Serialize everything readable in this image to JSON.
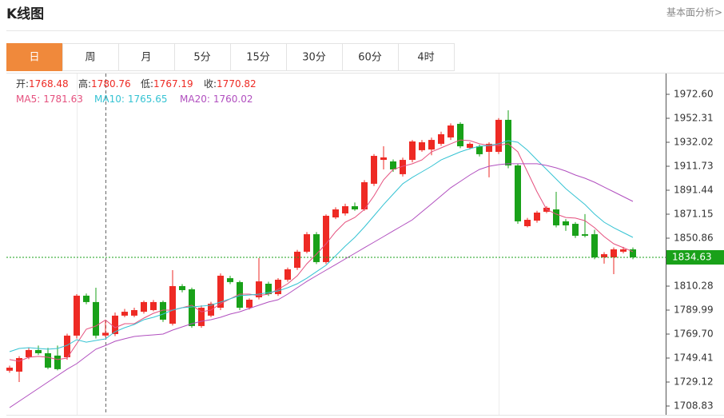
{
  "header": {
    "title": "K线图",
    "link": "基本面分析>"
  },
  "tabs": [
    {
      "label": "日",
      "active": true
    },
    {
      "label": "周"
    },
    {
      "label": "月"
    },
    {
      "label": "5分"
    },
    {
      "label": "15分"
    },
    {
      "label": "30分"
    },
    {
      "label": "60分"
    },
    {
      "label": "4时"
    }
  ],
  "chart_data": {
    "type": "candlestick",
    "info": {
      "labels": [
        "开:",
        "高:",
        "低:",
        "收:"
      ],
      "values": [
        1768.48,
        1780.76,
        1767.19,
        1770.82
      ],
      "ma_values": [
        1781.63,
        1765.65,
        1760.02
      ]
    },
    "up_color": "#ee2a24",
    "down_color": "#19a119",
    "open": [
      1738.7,
      1737.9,
      1750.1,
      1756.2,
      1753.5,
      1751.5,
      1750.1,
      1768.4,
      1802.2,
      1796.8,
      1768.48,
      1769.7,
      1785.3,
      1785.3,
      1788.6,
      1790.0,
      1796.8,
      1778.5,
      1810.3,
      1807.6,
      1776.5,
      1785.3,
      1792.0,
      1817.0,
      1813.7,
      1792.0,
      1800.8,
      1812.3,
      1803.5,
      1815.7,
      1825.8,
      1839.4,
      1854.2,
      1830.6,
      1868.4,
      1871.8,
      1877.9,
      1875.2,
      1896.9,
      1917.1,
      1915.8,
      1905.0,
      1917.1,
      1925.3,
      1925.9,
      1930.7,
      1936.1,
      1947.6,
      1927.3,
      1928.6,
      1923.9,
      1923.9,
      1951.0,
      1912.4,
      1861.0,
      1865.7,
      1873.2,
      1875.2,
      1865.1,
      1863.0,
      1854.2,
      1854.2,
      1834.6,
      1834.6,
      1839.4,
      1841.4
    ],
    "high": [
      1743,
      1751,
      1758,
      1760,
      1758,
      1760,
      1770,
      1803.5,
      1804,
      1808.9,
      1780.76,
      1788,
      1791,
      1792,
      1798,
      1798.5,
      1798,
      1823.8,
      1812,
      1809,
      1794,
      1797,
      1821,
      1819,
      1815,
      1800,
      1834.0,
      1814,
      1817,
      1826,
      1841,
      1856,
      1856,
      1871,
      1877,
      1880,
      1881,
      1900,
      1922,
      1928.6,
      1917.5,
      1919,
      1934,
      1934,
      1936,
      1941,
      1948,
      1949,
      1932,
      1930,
      1932,
      1952.5,
      1959.1,
      1914,
      1868,
      1874,
      1878,
      1890.1,
      1867,
      1864.5,
      1871.2,
      1858,
      1839,
      1843,
      1843.5,
      1843
    ],
    "low": [
      1737,
      1729.1,
      1748.5,
      1752,
      1740,
      1739,
      1748,
      1766,
      1795,
      1766,
      1767.19,
      1768,
      1784,
      1784,
      1787,
      1789,
      1780,
      1777,
      1805,
      1775,
      1775,
      1784,
      1790,
      1812,
      1790,
      1790.5,
      1799,
      1802,
      1802,
      1814,
      1824,
      1838,
      1829,
      1829,
      1867,
      1870,
      1874,
      1874,
      1895,
      1909.0,
      1907,
      1903,
      1915,
      1924,
      1921,
      1929,
      1934,
      1927,
      1926,
      1920,
      1902.3,
      1922,
      1910,
      1863,
      1860,
      1864,
      1872,
      1860,
      1857,
      1851,
      1851.5,
      1833,
      1829.3,
      1820.4,
      1838,
      1833
    ],
    "close": [
      1741.3,
      1749.4,
      1756.2,
      1753.5,
      1741.3,
      1740.0,
      1768.4,
      1802.2,
      1796.8,
      1768.4,
      1770.82,
      1785.3,
      1788.6,
      1790.0,
      1796.8,
      1796.8,
      1781.9,
      1810.3,
      1806.9,
      1776.5,
      1792.0,
      1795.4,
      1819.1,
      1813.7,
      1792.0,
      1798.8,
      1814.3,
      1803.5,
      1815.7,
      1824.5,
      1839.4,
      1854.2,
      1830.6,
      1869.8,
      1875.2,
      1877.9,
      1875.2,
      1898.2,
      1920.5,
      1919.2,
      1909.0,
      1917.1,
      1932.7,
      1932.0,
      1934.0,
      1938.8,
      1946.2,
      1928.6,
      1930.7,
      1921.9,
      1930.7,
      1951.0,
      1912.4,
      1865.1,
      1866.4,
      1872.5,
      1876.6,
      1861.7,
      1861.7,
      1852.9,
      1852.9,
      1834.6,
      1837.3,
      1841.4,
      1841.4,
      1834.63
    ],
    "series": [
      {
        "name": "MA5:",
        "color": "#e5507e",
        "values": [
          1748.1,
          1746.7,
          1750.1,
          1750.8,
          1750.1,
          1748.1,
          1749.4,
          1761.6,
          1773.8,
          1776.5,
          1781.63,
          1775.1,
          1778.5,
          1778.5,
          1783.2,
          1787.3,
          1790.0,
          1790.0,
          1792.0,
          1794.1,
          1788.6,
          1790.0,
          1795.4,
          1799.5,
          1803.5,
          1803.5,
          1802.2,
          1803.5,
          1807.6,
          1812.3,
          1819.1,
          1829.2,
          1837.3,
          1846.1,
          1856.3,
          1864.4,
          1868.4,
          1875.2,
          1886.7,
          1900.2,
          1909.0,
          1911.7,
          1913.8,
          1917.1,
          1923.9,
          1927.3,
          1930.7,
          1934.0,
          1933.4,
          1930.7,
          1929.3,
          1929.3,
          1930.7,
          1923.9,
          1907.0,
          1890.1,
          1875.2,
          1871.2,
          1868.4,
          1867.8,
          1865.7,
          1859.7,
          1852.2,
          1846.1,
          1842.8,
          1839.4
        ]
      },
      {
        "name": "MA10:",
        "color": "#35c3d3",
        "values": [
          1754.8,
          1757.5,
          1758.2,
          1757.5,
          1756.9,
          1757.5,
          1760.2,
          1765.0,
          1762.9,
          1764.3,
          1765.65,
          1771.7,
          1775.1,
          1777.8,
          1781.9,
          1783.9,
          1786.6,
          1790.0,
          1792.0,
          1792.7,
          1793.4,
          1794.1,
          1796.8,
          1799.5,
          1802.2,
          1802.8,
          1803.5,
          1804.9,
          1806.2,
          1808.9,
          1812.3,
          1817.0,
          1822.5,
          1827.9,
          1836.0,
          1844.1,
          1851.5,
          1860.3,
          1869.8,
          1879.3,
          1888.1,
          1896.9,
          1902.3,
          1907.0,
          1911.7,
          1917.1,
          1920.5,
          1923.9,
          1926.6,
          1928.6,
          1929.3,
          1930.7,
          1933.4,
          1932.0,
          1925.3,
          1917.1,
          1909.0,
          1900.9,
          1892.8,
          1886.0,
          1879.3,
          1871.2,
          1864.4,
          1859.7,
          1855.6,
          1851.5
        ]
      },
      {
        "name": "MA20:",
        "color": "#b14fbf",
        "values": [
          1707.5,
          1712.9,
          1718.3,
          1723.7,
          1729.1,
          1734.5,
          1740.0,
          1744.7,
          1750.8,
          1756.9,
          1760.02,
          1763.6,
          1765.7,
          1767.7,
          1768.4,
          1769.0,
          1769.7,
          1773.1,
          1775.8,
          1778.5,
          1780.5,
          1781.9,
          1783.9,
          1786.6,
          1788.6,
          1791.4,
          1794.1,
          1796.8,
          1798.8,
          1803.5,
          1808.9,
          1814.3,
          1819.1,
          1823.8,
          1828.5,
          1833.3,
          1838.0,
          1842.8,
          1847.5,
          1852.2,
          1857.0,
          1861.7,
          1866.4,
          1873.2,
          1879.9,
          1886.7,
          1893.5,
          1898.9,
          1904.3,
          1909.0,
          1911.7,
          1913.1,
          1913.8,
          1913.8,
          1913.8,
          1913.8,
          1912.4,
          1910.4,
          1907.7,
          1904.3,
          1901.6,
          1898.2,
          1894.1,
          1890.1,
          1886.0,
          1882.0
        ]
      }
    ],
    "last_price": 1834.63,
    "ylim": [
      1702.07,
      1989.5
    ],
    "yticks": [
      {
        "value": 1972.6,
        "label": "1972.60"
      },
      1952.31,
      1932.02,
      1911.73,
      1891.44,
      1871.15,
      1850.86,
      1810.28,
      1789.99,
      {
        "value": 1769.7,
        "label": "1769.70"
      },
      1749.41,
      1729.12,
      1708.83
    ]
  }
}
